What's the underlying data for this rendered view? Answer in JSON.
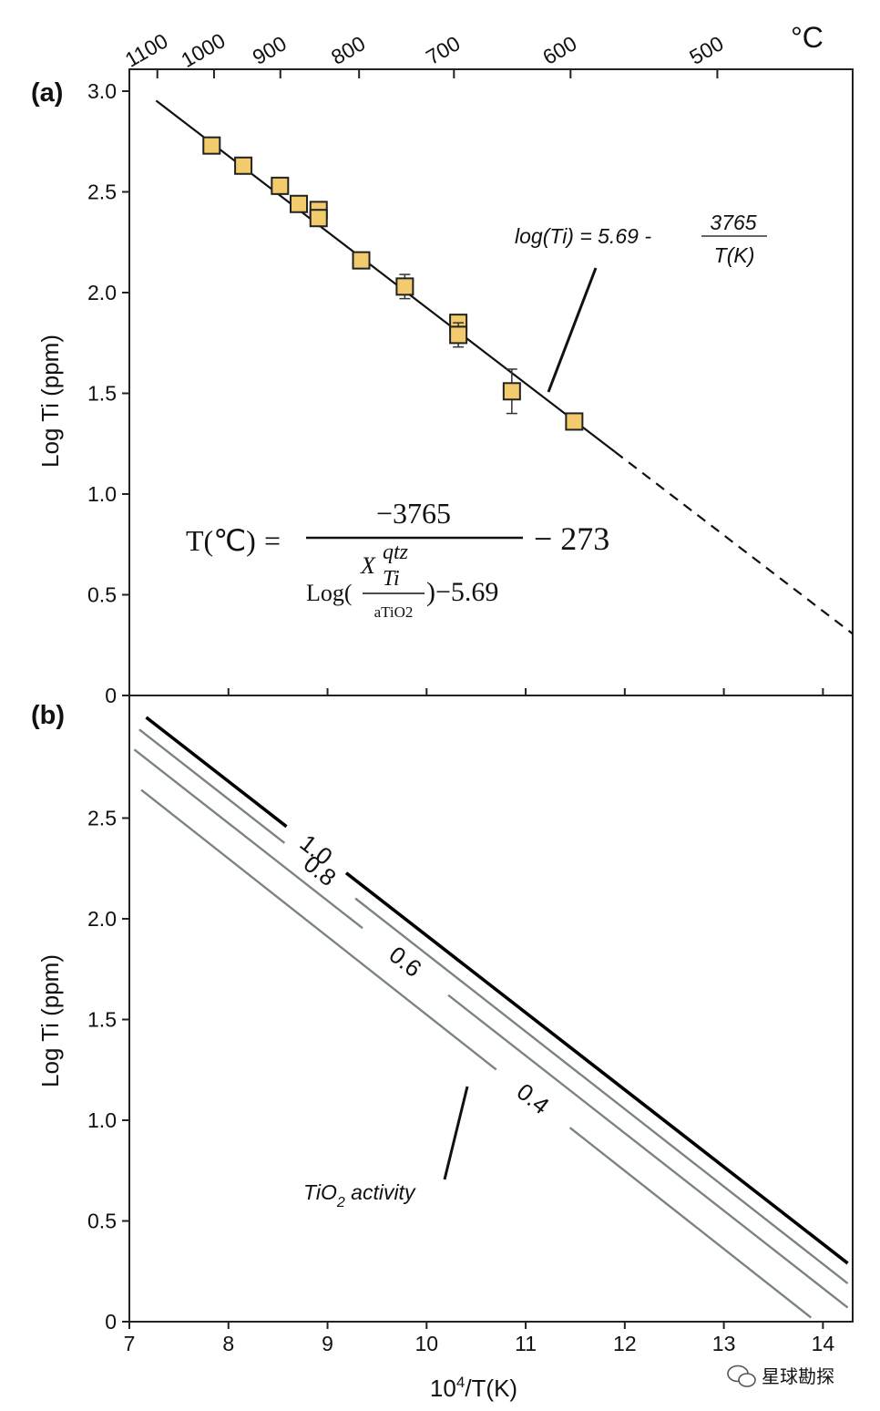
{
  "chart_data": [
    {
      "type": "scatter",
      "panel_label": "(a)",
      "xlabel": "",
      "ylabel": "Log Ti (ppm)",
      "top_axis_unit": "°C",
      "xlim": [
        7,
        14.3
      ],
      "ylim": [
        0,
        3.0
      ],
      "x_ticks": [
        7,
        8,
        9,
        10,
        11,
        12,
        13,
        14
      ],
      "y_ticks": [
        "0",
        "0.5",
        "1.0",
        "1.5",
        "2.0",
        "2.5",
        "3.0"
      ],
      "top_ticks": [
        {
          "celsius": 1100,
          "label": "1100"
        },
        {
          "celsius": 1000,
          "label": "1000"
        },
        {
          "celsius": 900,
          "label": "900"
        },
        {
          "celsius": 800,
          "label": "800"
        },
        {
          "celsius": 700,
          "label": "700"
        },
        {
          "celsius": 600,
          "label": "600"
        },
        {
          "celsius": 500,
          "label": "500"
        }
      ],
      "points": [
        {
          "x": 7.83,
          "y": 2.73,
          "err": 0.02
        },
        {
          "x": 8.15,
          "y": 2.63,
          "err": 0.02
        },
        {
          "x": 8.52,
          "y": 2.53,
          "err": 0.02
        },
        {
          "x": 8.71,
          "y": 2.44,
          "err": 0.04
        },
        {
          "x": 8.91,
          "y": 2.41,
          "err": 0.03
        },
        {
          "x": 8.91,
          "y": 2.37,
          "err": 0.03
        },
        {
          "x": 9.34,
          "y": 2.16,
          "err": 0.02
        },
        {
          "x": 9.78,
          "y": 2.03,
          "err": 0.06
        },
        {
          "x": 10.32,
          "y": 1.85,
          "err": 0.02
        },
        {
          "x": 10.32,
          "y": 1.79,
          "err": 0.06
        },
        {
          "x": 10.86,
          "y": 1.51,
          "err": 0.11
        },
        {
          "x": 11.49,
          "y": 1.36,
          "err": 0.02
        }
      ],
      "fit_line": {
        "equation": "log(Ti) = 5.69 - 3765/T(K)",
        "intercept": 5.69,
        "slope": -0.3765,
        "solid_x": [
          7.27,
          11.9
        ],
        "dashed_x": [
          11.9,
          14.3
        ]
      },
      "annotation": {
        "prefix": "log(Ti) = 5.69 - ",
        "numerator": "3765",
        "denominator": "T(K)"
      },
      "formula": {
        "lhs": "T(℃)",
        "equals": "=",
        "numerator": "−3765",
        "minus_const": "− 273",
        "log_open": "Log(",
        "x": "X",
        "x_sup": "qtz",
        "x_sub": "Ti",
        "a_tio2": "aTiO2",
        "close_tail": ")−5.69"
      },
      "colors": {
        "marker_fill": "#f2cb6c",
        "marker_edge": "#222222",
        "line": "#111111"
      }
    },
    {
      "type": "line",
      "panel_label": "(b)",
      "xlabel": "10⁴/T(K)",
      "ylabel": "Log Ti (ppm)",
      "xlim": [
        7,
        14.3
      ],
      "ylim": [
        0,
        3.0
      ],
      "x_ticks": [
        "7",
        "8",
        "9",
        "10",
        "11",
        "12",
        "13",
        "14"
      ],
      "y_ticks": [
        "0",
        "0.5",
        "1.0",
        "1.5",
        "2.0",
        "2.5"
      ],
      "series": [
        {
          "name": "1.0",
          "activity": 1.0,
          "x": [
            7.17,
            14.25
          ],
          "y": [
            3.0,
            0.29
          ],
          "color": "#000000",
          "width": 3.6
        },
        {
          "name": "0.8",
          "activity": 0.8,
          "x": [
            7.1,
            14.25
          ],
          "y": [
            2.94,
            0.19
          ],
          "color": "#7a8484",
          "width": 2.4
        },
        {
          "name": "0.6",
          "activity": 0.6,
          "x": [
            7.05,
            14.25
          ],
          "y": [
            2.84,
            0.07
          ],
          "color": "#7a8484",
          "width": 2.4
        },
        {
          "name": "0.4",
          "activity": 0.4,
          "x": [
            7.12,
            13.88
          ],
          "y": [
            2.64,
            0.02
          ],
          "color": "#7a8484",
          "width": 2.4
        }
      ],
      "annotation": {
        "text_pre": "TiO",
        "text_sub": "2",
        "text_post": " activity"
      }
    }
  ],
  "watermark": "星球勘探"
}
